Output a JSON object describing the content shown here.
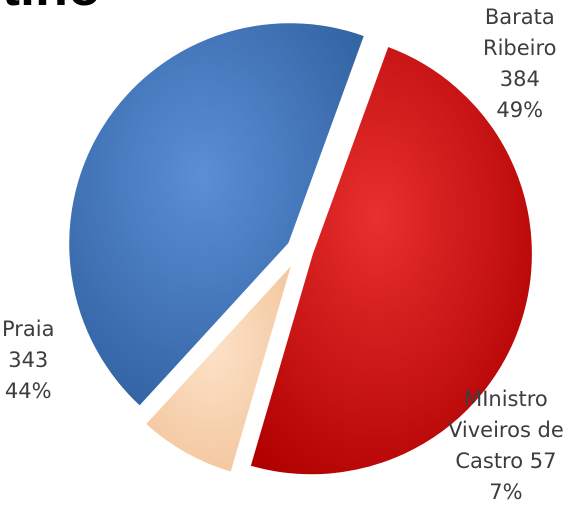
{
  "chart_data": {
    "type": "pie",
    "title": "tino",
    "slices": [
      {
        "key": "barata",
        "label_lines": [
          "Barata",
          "Ribeiro"
        ],
        "value_line": "384",
        "percent_line": "49%",
        "value": 384,
        "percent": 49,
        "color": "#cc0000"
      },
      {
        "key": "ministro",
        "label_lines": [
          "MInistro",
          "Viveiros de",
          "Castro 57"
        ],
        "value_line": "",
        "percent_line": "7%",
        "value": 57,
        "percent": 7,
        "color": "#fcd5b5"
      },
      {
        "key": "praia",
        "label_lines": [
          "Praia"
        ],
        "value_line": "343",
        "percent_line": "44%",
        "value": 343,
        "percent": 44,
        "color": "#4f81bd"
      }
    ]
  }
}
